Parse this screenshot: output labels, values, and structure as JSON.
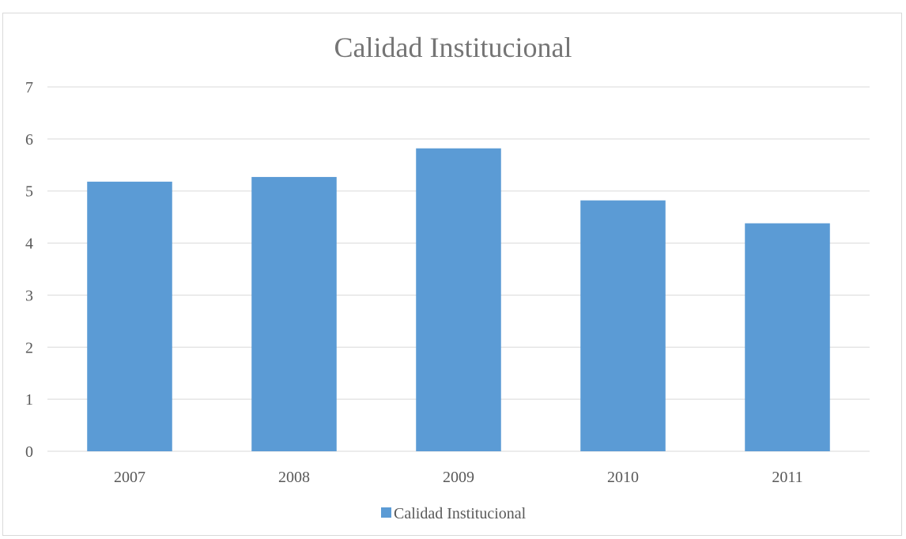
{
  "chart_data": {
    "type": "bar",
    "title": "Calidad Institucional",
    "categories": [
      "2007",
      "2008",
      "2009",
      "2010",
      "2011"
    ],
    "series": [
      {
        "name": "Calidad Institucional",
        "values": [
          5.18,
          5.27,
          5.82,
          4.82,
          4.38
        ],
        "color": "#5b9bd5"
      }
    ],
    "xlabel": "",
    "ylabel": "",
    "ylim": [
      0,
      7
    ],
    "yticks": [
      "0",
      "1",
      "2",
      "3",
      "4",
      "5",
      "6",
      "7"
    ],
    "grid": true,
    "legend": "bottom"
  }
}
